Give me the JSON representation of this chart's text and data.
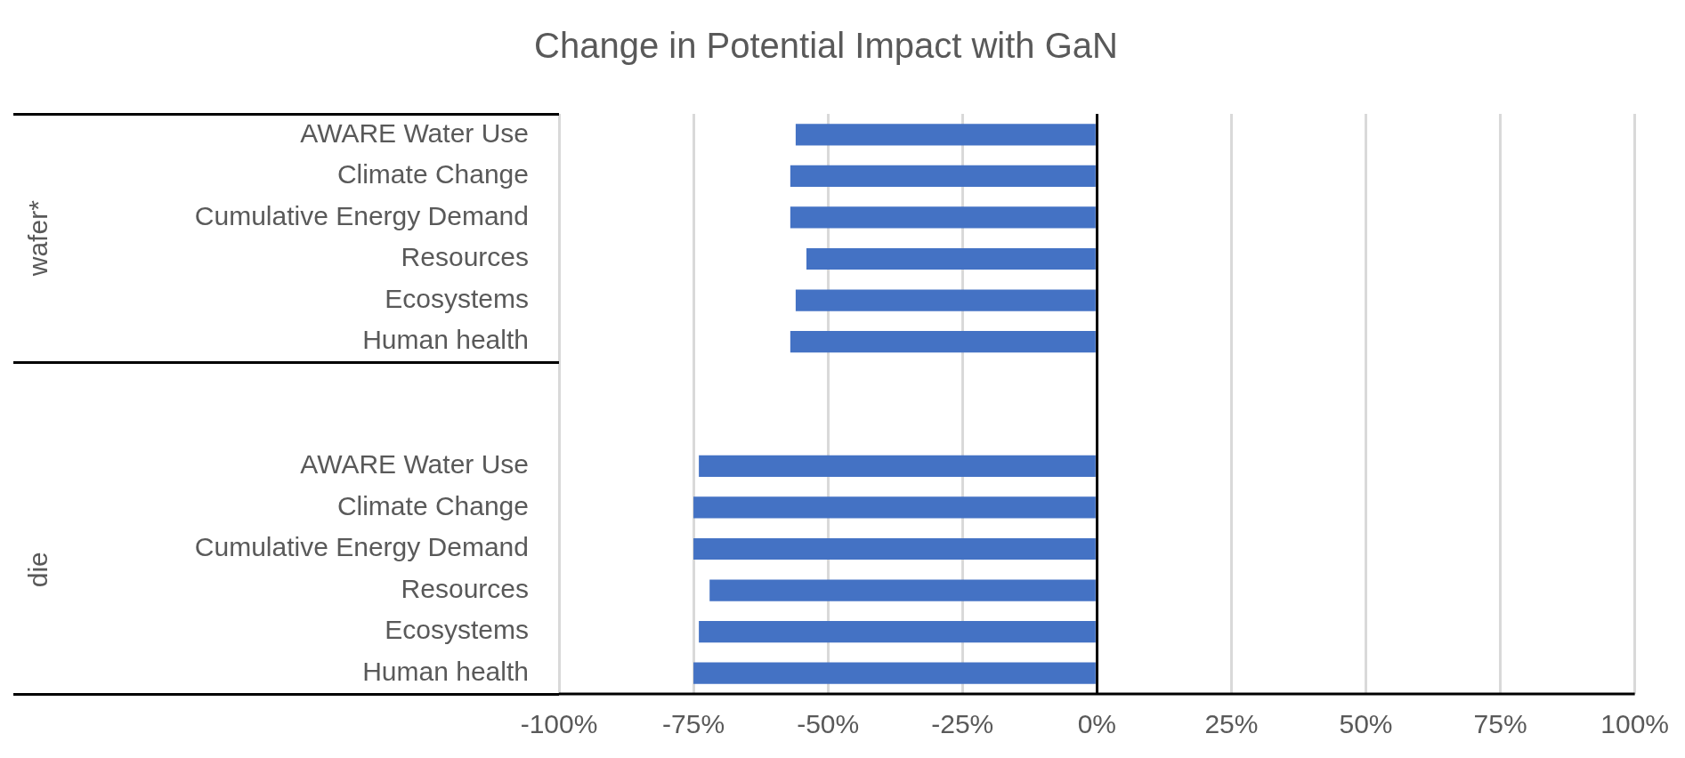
{
  "chart_data": {
    "type": "bar",
    "orientation": "horizontal",
    "title": "Change in Potential Impact with GaN",
    "categories": [
      "AWARE Water Use",
      "Climate Change",
      "Cumulative Energy Demand",
      "Resources",
      "Ecosystems",
      "Human health",
      null,
      null,
      "AWARE Water Use",
      "Climate Change",
      "Cumulative Energy Demand",
      "Resources",
      "Ecosystems",
      "Human health"
    ],
    "values": [
      -56,
      -57,
      -57,
      -54,
      -56,
      -57,
      null,
      null,
      -74,
      -75,
      -75,
      -72,
      -74,
      -75
    ],
    "color": "#4472c4",
    "xlim": [
      -100,
      100
    ],
    "xticks": [
      {
        "value": -100,
        "label": "-100%"
      },
      {
        "value": -75,
        "label": "-75%"
      },
      {
        "value": -50,
        "label": "-50%"
      },
      {
        "value": -25,
        "label": "-25%"
      },
      {
        "value": 0,
        "label": "0%"
      },
      {
        "value": 25,
        "label": "25%"
      },
      {
        "value": 50,
        "label": "50%"
      },
      {
        "value": 75,
        "label": "75%"
      },
      {
        "value": 100,
        "label": "100%"
      }
    ],
    "grid": "x",
    "annotations": [
      "wafer*",
      "die"
    ]
  }
}
